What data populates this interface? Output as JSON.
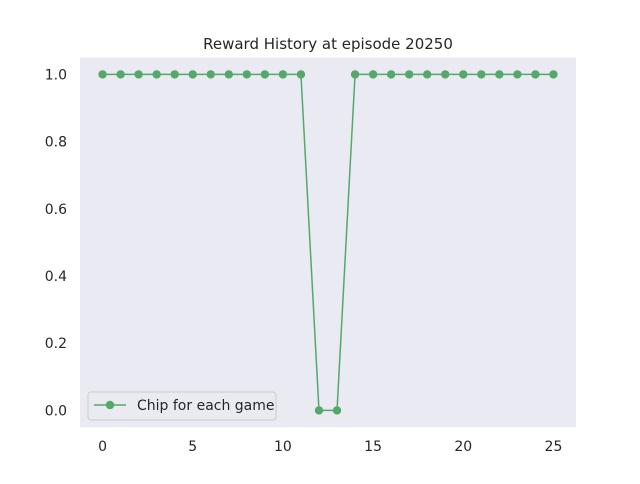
{
  "chart_data": {
    "type": "line",
    "title": "Reward History at episode 20250",
    "xlabel": "",
    "ylabel": "",
    "xlim": [
      -1.25,
      26.25
    ],
    "ylim": [
      -0.05,
      1.05
    ],
    "xticks": [
      0,
      5,
      10,
      15,
      20,
      25
    ],
    "yticks": [
      0.0,
      0.2,
      0.4,
      0.6,
      0.8,
      1.0
    ],
    "xtick_labels": [
      "0",
      "5",
      "10",
      "15",
      "20",
      "25"
    ],
    "ytick_labels": [
      "0.0",
      "0.2",
      "0.4",
      "0.6",
      "0.8",
      "1.0"
    ],
    "grid": false,
    "legend_position": "lower-left",
    "background_color": "#eaeaf2",
    "series": [
      {
        "name": "Chip for each game",
        "color": "#55a868",
        "marker": "circle",
        "x": [
          0,
          1,
          2,
          3,
          4,
          5,
          6,
          7,
          8,
          9,
          10,
          11,
          12,
          13,
          14,
          15,
          16,
          17,
          18,
          19,
          20,
          21,
          22,
          23,
          24,
          25
        ],
        "y": [
          1,
          1,
          1,
          1,
          1,
          1,
          1,
          1,
          1,
          1,
          1,
          1,
          0,
          0,
          1,
          1,
          1,
          1,
          1,
          1,
          1,
          1,
          1,
          1,
          1,
          1
        ]
      }
    ]
  }
}
